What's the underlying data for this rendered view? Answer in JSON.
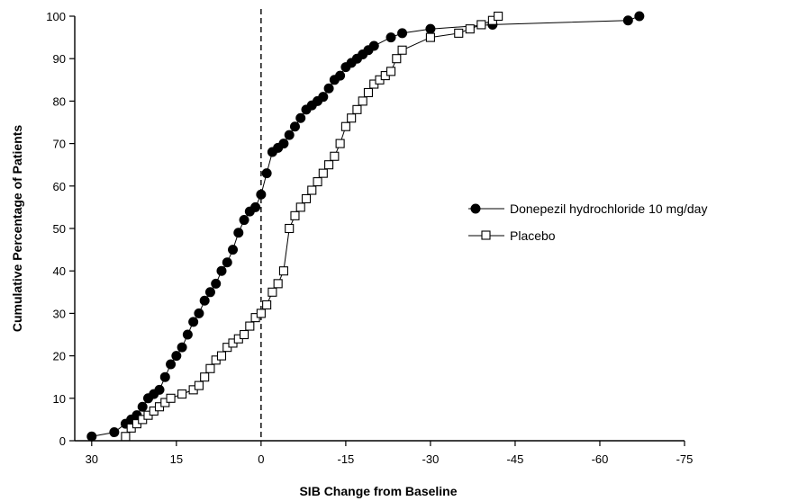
{
  "chart_data": {
    "type": "line",
    "title": "",
    "xlabel": "SIB Change from Baseline",
    "ylabel": "Cumulative Percentage of Patients",
    "xlim": [
      33,
      -75
    ],
    "ylim": [
      0,
      100
    ],
    "x_ticks": [
      30,
      15,
      0,
      -15,
      -30,
      -45,
      -60,
      -75
    ],
    "x_tick_labels": [
      "30",
      "15",
      "0",
      "-15",
      "-30",
      "-45",
      "-60",
      "-75"
    ],
    "y_ticks": [
      0,
      10,
      20,
      30,
      40,
      50,
      60,
      70,
      80,
      90,
      100
    ],
    "y_tick_labels": [
      "0",
      "10",
      "20",
      "30",
      "40",
      "50",
      "60",
      "70",
      "80",
      "90",
      "100"
    ],
    "reference_line_x": 0,
    "legend_position": "right",
    "series": [
      {
        "name": "Donepezil hydrochloride 10 mg/day",
        "marker": "filled-circle",
        "color": "#000000",
        "points": [
          [
            30,
            1
          ],
          [
            26,
            2
          ],
          [
            24,
            4
          ],
          [
            23,
            5
          ],
          [
            22,
            6
          ],
          [
            21,
            8
          ],
          [
            20,
            10
          ],
          [
            19,
            11
          ],
          [
            18,
            12
          ],
          [
            17,
            15
          ],
          [
            16,
            18
          ],
          [
            15,
            20
          ],
          [
            14,
            22
          ],
          [
            13,
            25
          ],
          [
            12,
            28
          ],
          [
            11,
            30
          ],
          [
            10,
            33
          ],
          [
            9,
            35
          ],
          [
            8,
            37
          ],
          [
            7,
            40
          ],
          [
            6,
            42
          ],
          [
            5,
            45
          ],
          [
            4,
            49
          ],
          [
            3,
            52
          ],
          [
            2,
            54
          ],
          [
            1,
            55
          ],
          [
            0,
            58
          ],
          [
            -1,
            63
          ],
          [
            -2,
            68
          ],
          [
            -3,
            69
          ],
          [
            -4,
            70
          ],
          [
            -5,
            72
          ],
          [
            -6,
            74
          ],
          [
            -7,
            76
          ],
          [
            -8,
            78
          ],
          [
            -9,
            79
          ],
          [
            -10,
            80
          ],
          [
            -11,
            81
          ],
          [
            -12,
            83
          ],
          [
            -13,
            85
          ],
          [
            -14,
            86
          ],
          [
            -15,
            88
          ],
          [
            -16,
            89
          ],
          [
            -17,
            90
          ],
          [
            -18,
            91
          ],
          [
            -19,
            92
          ],
          [
            -20,
            93
          ],
          [
            -23,
            95
          ],
          [
            -25,
            96
          ],
          [
            -30,
            97
          ],
          [
            -41,
            98
          ],
          [
            -65,
            99
          ],
          [
            -67,
            100
          ]
        ]
      },
      {
        "name": "Placebo",
        "marker": "open-square",
        "color": "#000000",
        "points": [
          [
            24,
            1
          ],
          [
            23,
            3
          ],
          [
            22,
            4
          ],
          [
            21,
            5
          ],
          [
            20,
            6
          ],
          [
            19,
            7
          ],
          [
            18,
            8
          ],
          [
            17,
            9
          ],
          [
            16,
            10
          ],
          [
            14,
            11
          ],
          [
            12,
            12
          ],
          [
            11,
            13
          ],
          [
            10,
            15
          ],
          [
            9,
            17
          ],
          [
            8,
            19
          ],
          [
            7,
            20
          ],
          [
            6,
            22
          ],
          [
            5,
            23
          ],
          [
            4,
            24
          ],
          [
            3,
            25
          ],
          [
            2,
            27
          ],
          [
            1,
            29
          ],
          [
            0,
            30
          ],
          [
            -1,
            32
          ],
          [
            -2,
            35
          ],
          [
            -3,
            37
          ],
          [
            -4,
            40
          ],
          [
            -5,
            50
          ],
          [
            -6,
            53
          ],
          [
            -7,
            55
          ],
          [
            -8,
            57
          ],
          [
            -9,
            59
          ],
          [
            -10,
            61
          ],
          [
            -11,
            63
          ],
          [
            -12,
            65
          ],
          [
            -13,
            67
          ],
          [
            -14,
            70
          ],
          [
            -15,
            74
          ],
          [
            -16,
            76
          ],
          [
            -17,
            78
          ],
          [
            -18,
            80
          ],
          [
            -19,
            82
          ],
          [
            -20,
            84
          ],
          [
            -21,
            85
          ],
          [
            -22,
            86
          ],
          [
            -23,
            87
          ],
          [
            -24,
            90
          ],
          [
            -25,
            92
          ],
          [
            -30,
            95
          ],
          [
            -35,
            96
          ],
          [
            -37,
            97
          ],
          [
            -39,
            98
          ],
          [
            -41,
            99
          ],
          [
            -42,
            100
          ]
        ]
      }
    ]
  }
}
